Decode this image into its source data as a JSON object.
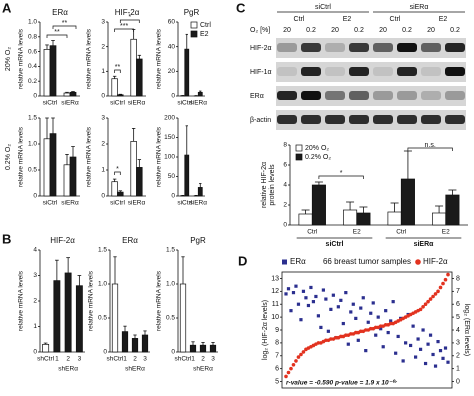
{
  "panel_labels": [
    "A",
    "B",
    "C",
    "D"
  ],
  "panel_a": {
    "row_labels": [
      "20% O₂",
      "0.2% O₂"
    ]
  },
  "blot": {
    "group_labels": [
      "siCtrl",
      "siERα"
    ],
    "treatments": [
      "Ctrl",
      "E2",
      "Ctrl",
      "E2"
    ],
    "o2_label": "O₂ [%]",
    "o2_values": [
      20,
      0.2,
      20,
      0.2,
      20,
      0.2,
      20,
      0.2
    ],
    "rows": [
      "HIF-2α",
      "HIF-1α",
      "ERα",
      "β-actin"
    ]
  },
  "chart_data": [
    {
      "type": "bar",
      "title": "ERα",
      "ylabel": "relative mRNA levels",
      "categories": [
        "siCtrl",
        "siERα"
      ],
      "series": [
        {
          "name": "Ctrl",
          "color": "#ffffff",
          "values": [
            0.63,
            0.04
          ],
          "errors": [
            0.06,
            0.01
          ]
        },
        {
          "name": "E2",
          "color": "#1a1a1a",
          "values": [
            0.68,
            0.05
          ],
          "errors": [
            0.07,
            0.01
          ]
        }
      ],
      "ylim": [
        0,
        1
      ],
      "yticks": [
        0,
        0.2,
        0.4,
        0.6,
        0.8,
        {
          "value": 1,
          "label": "1.0"
        }
      ],
      "annotations": [
        "**",
        "**"
      ]
    },
    {
      "type": "bar",
      "title": "HIF-2α",
      "ylabel": "relative mRNA levels",
      "categories": [
        "siCtrl",
        "siERα"
      ],
      "series": [
        {
          "name": "Ctrl",
          "color": "#ffffff",
          "values": [
            0.7,
            2.3
          ],
          "errors": [
            0.1,
            0.4
          ]
        },
        {
          "name": "E2",
          "color": "#1a1a1a",
          "values": [
            0.05,
            1.5
          ],
          "errors": [
            0.02,
            0.15
          ]
        }
      ],
      "ylim": [
        0,
        3
      ],
      "yticks": [
        0,
        1,
        2,
        3
      ],
      "annotations": [
        "**",
        "*",
        "***"
      ]
    },
    {
      "type": "bar",
      "title": "PgR",
      "ylabel": "relative mRNA levels",
      "categories": [
        "siCtrl",
        "siERα"
      ],
      "series": [
        {
          "name": "Ctrl",
          "color": "#ffffff",
          "values": [
            0.3,
            0.2
          ],
          "errors": [
            0.1,
            0.1
          ]
        },
        {
          "name": "E2",
          "color": "#1a1a1a",
          "values": [
            38,
            3
          ],
          "errors": [
            12,
            1
          ]
        }
      ],
      "ylim": [
        0,
        60
      ],
      "yticks": [
        0,
        20,
        40,
        60
      ],
      "legend": "upper right"
    },
    {
      "type": "bar",
      "ylabel": "relative mRNA levels",
      "categories": [
        "siCtrl",
        "siERα"
      ],
      "series": [
        {
          "name": "Ctrl",
          "color": "#ffffff",
          "values": [
            1.1,
            0.6
          ],
          "errors": [
            0.4,
            0.2
          ]
        },
        {
          "name": "E2",
          "color": "#1a1a1a",
          "values": [
            1.2,
            0.75
          ],
          "errors": [
            0.3,
            0.2
          ]
        }
      ],
      "ylim": [
        0,
        1.5
      ],
      "yticks": [
        0,
        0.5,
        {
          "value": 1,
          "label": "1.0"
        },
        1.5
      ]
    },
    {
      "type": "bar",
      "ylabel": "relative mRNA levels",
      "categories": [
        "siCtrl",
        "siERα"
      ],
      "series": [
        {
          "name": "Ctrl",
          "color": "#ffffff",
          "values": [
            0.55,
            2.1
          ],
          "errors": [
            0.1,
            0.5
          ]
        },
        {
          "name": "E2",
          "color": "#1a1a1a",
          "values": [
            0.15,
            1.1
          ],
          "errors": [
            0.05,
            0.3
          ]
        }
      ],
      "ylim": [
        0,
        3
      ],
      "yticks": [
        0,
        1,
        2,
        3
      ],
      "annotations": [
        "*"
      ]
    },
    {
      "type": "bar",
      "ylabel": "relative mRNA levels",
      "categories": [
        "siCtrl",
        "siERα"
      ],
      "series": [
        {
          "name": "Ctrl",
          "color": "#ffffff",
          "values": [
            1,
            1
          ],
          "errors": [
            0.5,
            0.5
          ]
        },
        {
          "name": "E2",
          "color": "#1a1a1a",
          "values": [
            105,
            22
          ],
          "errors": [
            75,
            10
          ]
        }
      ],
      "ylim": [
        0,
        200
      ],
      "yticks": [
        0,
        50,
        100,
        150,
        200
      ]
    },
    {
      "type": "bar",
      "title": "HIF-2α",
      "ylabel": "relative mRNA levels",
      "categories": [
        "shCtrl",
        "1",
        "2",
        "3"
      ],
      "group_label": "shERα",
      "values": [
        0.3,
        2.8,
        3.1,
        2.6
      ],
      "errors": [
        0.05,
        0.8,
        0.6,
        0.4
      ],
      "colors": [
        "#ffffff",
        "#1a1a1a",
        "#1a1a1a",
        "#1a1a1a"
      ],
      "ylim": [
        0,
        4
      ],
      "yticks": [
        0,
        1,
        2,
        3,
        4
      ]
    },
    {
      "type": "bar",
      "title": "ERα",
      "ylabel": "relative mRNA levels",
      "categories": [
        "shCtrl",
        "1",
        "2",
        "3"
      ],
      "group_label": "shERα",
      "values": [
        1.0,
        0.3,
        0.2,
        0.25
      ],
      "errors": [
        0.4,
        0.08,
        0.05,
        0.06
      ],
      "colors": [
        "#ffffff",
        "#1a1a1a",
        "#1a1a1a",
        "#1a1a1a"
      ],
      "ylim": [
        0,
        1.5
      ],
      "yticks": [
        0,
        0.5,
        {
          "value": 1,
          "label": "1.0"
        },
        1.5
      ]
    },
    {
      "type": "bar",
      "title": "PgR",
      "ylabel": "relative mRNA levels",
      "categories": [
        "shCtrl",
        "1",
        "2",
        "3"
      ],
      "group_label": "shERα",
      "values": [
        1.0,
        0.1,
        0.1,
        0.1
      ],
      "errors": [
        0.4,
        0.05,
        0.04,
        0.04
      ],
      "colors": [
        "#ffffff",
        "#1a1a1a",
        "#1a1a1a",
        "#1a1a1a"
      ],
      "ylim": [
        0,
        1.5
      ],
      "yticks": [
        0,
        0.5,
        {
          "value": 1,
          "label": "1.0"
        },
        1.5
      ]
    },
    {
      "type": "bar",
      "ylabel": [
        "relative HIF-2α",
        "protein levels"
      ],
      "categories": [
        "Ctrl",
        "E2",
        "Ctrl",
        "E2"
      ],
      "groups": [
        "siCtrl",
        "siERα"
      ],
      "series": [
        {
          "name": "20% O₂",
          "color": "#ffffff",
          "values": [
            1.1,
            1.5,
            1.3,
            1.2
          ],
          "errors": [
            0.4,
            0.8,
            0.9,
            0.7
          ]
        },
        {
          "name": "0.2% O₂",
          "color": "#1a1a1a",
          "values": [
            4.0,
            1.2,
            4.6,
            3.0
          ],
          "errors": [
            0.3,
            0.6,
            2.8,
            0.5
          ]
        }
      ],
      "ylim": [
        0,
        8
      ],
      "yticks": [
        0,
        2,
        4,
        6,
        8
      ],
      "legend": "upper left",
      "annotations": [
        "*",
        "n.s."
      ]
    },
    {
      "type": "scatter",
      "legend_title": "66 breast tumor samples",
      "ylabel": "log₂ (HIF-2α levels)",
      "y2label": "log₂ (ERα levels)",
      "series": [
        {
          "name": "ERα",
          "color": "#2b2f8f",
          "marker": "square",
          "axis": "y2",
          "values": [
            6.8,
            7.2,
            5.5,
            6.9,
            7.4,
            6.0,
            4.8,
            7.0,
            6.5,
            5.9,
            7.3,
            6.2,
            6.6,
            5.1,
            4.2,
            7.1,
            6.4,
            3.9,
            5.6,
            6.7,
            3.4,
            5.8,
            6.3,
            4.5,
            6.9,
            2.9,
            5.4,
            6.0,
            4.9,
            3.2,
            5.7,
            6.5,
            2.4,
            4.6,
            5.3,
            6.1,
            3.6,
            5.0,
            4.1,
            2.7,
            5.5,
            3.8,
            4.7,
            6.2,
            2.2,
            3.5,
            4.9,
            1.6,
            3.0,
            5.2,
            2.8,
            4.3,
            1.9,
            3.3,
            2.5,
            4.0,
            1.4,
            2.9,
            3.6,
            2.1,
            1.2,
            3.1,
            2.4,
            1.8,
            2.6,
            1.5
          ]
        },
        {
          "name": "HIF-2α",
          "color": "#e2321f",
          "marker": "circle",
          "values": [
            5.4,
            5.7,
            6.0,
            6.3,
            6.6,
            6.9,
            7.1,
            7.3,
            7.5,
            7.6,
            7.7,
            7.8,
            7.9,
            8.0,
            8.0,
            8.1,
            8.2,
            8.2,
            8.3,
            8.3,
            8.4,
            8.4,
            8.5,
            8.5,
            8.6,
            8.6,
            8.7,
            8.7,
            8.8,
            8.8,
            8.9,
            8.9,
            9.0,
            9.0,
            9.1,
            9.1,
            9.2,
            9.2,
            9.3,
            9.3,
            9.4,
            9.4,
            9.5,
            9.5,
            9.6,
            9.7,
            9.8,
            9.9,
            10.0,
            10.1,
            10.2,
            10.3,
            10.4,
            10.5,
            10.6,
            10.8,
            11.0,
            11.2,
            11.4,
            11.6,
            11.8,
            12.0,
            12.3,
            12.6,
            12.9,
            13.3
          ]
        }
      ],
      "ylim": [
        4.5,
        13.5
      ],
      "yticks": [
        5,
        6,
        7,
        8,
        9,
        10,
        11,
        12,
        13
      ],
      "y2lim": [
        -0.5,
        8.5
      ],
      "y2ticks": [
        0,
        1,
        2,
        3,
        4,
        5,
        6,
        7,
        8
      ],
      "annotation": "r-value = -0.590   p-value = 1.9 x 10⁻⁰⁷"
    }
  ]
}
